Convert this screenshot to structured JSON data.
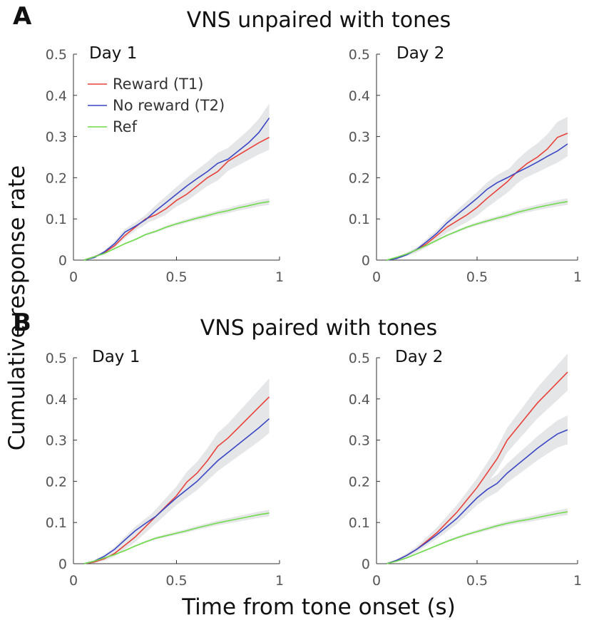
{
  "figure": {
    "ylabel": "Cumulative response rate",
    "xlabel": "Time from tone onset (s)",
    "rows": [
      {
        "letter": "A",
        "title": "VNS unpaired with tones"
      },
      {
        "letter": "B",
        "title": "VNS paired with tones"
      }
    ]
  },
  "colors": {
    "reward": "#e8413a",
    "noreward": "#3a46c4",
    "ref": "#6fdc4a",
    "band": "#e5e6e8"
  },
  "chart_data": [
    {
      "type": "line",
      "panel": "A",
      "title": "Day 1",
      "x": [
        0.05,
        0.1,
        0.15,
        0.2,
        0.25,
        0.3,
        0.35,
        0.4,
        0.45,
        0.5,
        0.55,
        0.6,
        0.65,
        0.7,
        0.75,
        0.8,
        0.85,
        0.9,
        0.95
      ],
      "xlim": [
        0,
        1
      ],
      "ylim": [
        0,
        0.5
      ],
      "xticks": [
        "0",
        "0.5",
        "1"
      ],
      "yticks": [
        "0",
        "0.1",
        "0.2",
        "0.3",
        "0.4",
        "0.5"
      ],
      "legend": [
        "Reward (T1)",
        "No reward (T2)",
        "Ref"
      ],
      "series": [
        {
          "name": "Reward (T1)",
          "color_key": "reward",
          "values": [
            0.0,
            0.008,
            0.018,
            0.035,
            0.06,
            0.08,
            0.1,
            0.11,
            0.125,
            0.145,
            0.16,
            0.18,
            0.2,
            0.215,
            0.24,
            0.255,
            0.27,
            0.285,
            0.298
          ],
          "band": 0.03
        },
        {
          "name": "No reward (T2)",
          "color_key": "noreward",
          "values": [
            0.0,
            0.006,
            0.02,
            0.04,
            0.068,
            0.082,
            0.098,
            0.12,
            0.14,
            0.16,
            0.18,
            0.198,
            0.215,
            0.235,
            0.245,
            0.265,
            0.285,
            0.31,
            0.345
          ],
          "band": 0.035
        },
        {
          "name": "Ref",
          "color_key": "ref",
          "values": [
            0.0,
            0.008,
            0.016,
            0.028,
            0.04,
            0.05,
            0.062,
            0.07,
            0.08,
            0.088,
            0.095,
            0.102,
            0.108,
            0.115,
            0.12,
            0.127,
            0.132,
            0.138,
            0.142
          ],
          "band": 0.008
        }
      ]
    },
    {
      "type": "line",
      "panel": "A",
      "title": "Day 2",
      "x": [
        0.05,
        0.1,
        0.15,
        0.2,
        0.25,
        0.3,
        0.35,
        0.4,
        0.45,
        0.5,
        0.55,
        0.6,
        0.65,
        0.7,
        0.75,
        0.8,
        0.85,
        0.9,
        0.95
      ],
      "xlim": [
        0,
        1
      ],
      "ylim": [
        0,
        0.5
      ],
      "xticks": [
        "0",
        "0.5",
        "1"
      ],
      "yticks": [
        "0",
        "0.1",
        "0.2",
        "0.3",
        "0.4",
        "0.5"
      ],
      "series": [
        {
          "name": "Reward (T1)",
          "color_key": "reward",
          "values": [
            0.0,
            0.005,
            0.014,
            0.025,
            0.04,
            0.06,
            0.08,
            0.095,
            0.11,
            0.128,
            0.15,
            0.17,
            0.19,
            0.215,
            0.235,
            0.25,
            0.27,
            0.298,
            0.308
          ],
          "band": 0.04
        },
        {
          "name": "No reward (T2)",
          "color_key": "noreward",
          "values": [
            0.0,
            0.004,
            0.013,
            0.026,
            0.045,
            0.065,
            0.09,
            0.11,
            0.13,
            0.15,
            0.172,
            0.188,
            0.2,
            0.213,
            0.225,
            0.238,
            0.252,
            0.265,
            0.282
          ],
          "band": 0.03
        },
        {
          "name": "Ref",
          "color_key": "ref",
          "values": [
            0.0,
            0.007,
            0.015,
            0.025,
            0.036,
            0.048,
            0.06,
            0.07,
            0.08,
            0.088,
            0.095,
            0.102,
            0.108,
            0.116,
            0.122,
            0.128,
            0.133,
            0.138,
            0.142
          ],
          "band": 0.008
        }
      ]
    },
    {
      "type": "line",
      "panel": "B",
      "title": "Day 1",
      "x": [
        0.05,
        0.1,
        0.15,
        0.2,
        0.25,
        0.3,
        0.35,
        0.4,
        0.45,
        0.5,
        0.55,
        0.6,
        0.65,
        0.7,
        0.75,
        0.8,
        0.85,
        0.9,
        0.95
      ],
      "xlim": [
        0,
        1
      ],
      "ylim": [
        0,
        0.5
      ],
      "xticks": [
        "0",
        "0.5",
        "1"
      ],
      "yticks": [
        "0",
        "0.1",
        "0.2",
        "0.3",
        "0.4",
        "0.5"
      ],
      "series": [
        {
          "name": "Reward (T1)",
          "color_key": "reward",
          "values": [
            0.0,
            0.004,
            0.012,
            0.025,
            0.045,
            0.065,
            0.09,
            0.115,
            0.14,
            0.165,
            0.198,
            0.22,
            0.25,
            0.285,
            0.305,
            0.33,
            0.355,
            0.38,
            0.405
          ],
          "band": 0.045
        },
        {
          "name": "No reward (T2)",
          "color_key": "noreward",
          "values": [
            0.0,
            0.006,
            0.018,
            0.035,
            0.058,
            0.08,
            0.098,
            0.115,
            0.138,
            0.16,
            0.18,
            0.2,
            0.225,
            0.25,
            0.27,
            0.29,
            0.31,
            0.33,
            0.352
          ],
          "band": 0.035
        },
        {
          "name": "Ref",
          "color_key": "ref",
          "values": [
            0.0,
            0.006,
            0.014,
            0.022,
            0.032,
            0.043,
            0.053,
            0.062,
            0.068,
            0.074,
            0.08,
            0.087,
            0.093,
            0.099,
            0.104,
            0.109,
            0.114,
            0.119,
            0.123
          ],
          "band": 0.008
        }
      ]
    },
    {
      "type": "line",
      "panel": "B",
      "title": "Day 2",
      "x": [
        0.05,
        0.1,
        0.15,
        0.2,
        0.25,
        0.3,
        0.35,
        0.4,
        0.45,
        0.5,
        0.55,
        0.6,
        0.65,
        0.7,
        0.75,
        0.8,
        0.85,
        0.9,
        0.95
      ],
      "xlim": [
        0,
        1
      ],
      "ylim": [
        0,
        0.5
      ],
      "xticks": [
        "0",
        "0.5",
        "1"
      ],
      "yticks": [
        "0",
        "0.1",
        "0.2",
        "0.3",
        "0.4",
        "0.5"
      ],
      "series": [
        {
          "name": "Reward (T1)",
          "color_key": "reward",
          "values": [
            0.0,
            0.008,
            0.02,
            0.035,
            0.055,
            0.075,
            0.1,
            0.125,
            0.155,
            0.185,
            0.22,
            0.255,
            0.3,
            0.33,
            0.36,
            0.39,
            0.415,
            0.44,
            0.465
          ],
          "band": 0.045
        },
        {
          "name": "No reward (T2)",
          "color_key": "noreward",
          "values": [
            0.0,
            0.008,
            0.02,
            0.035,
            0.052,
            0.07,
            0.09,
            0.11,
            0.135,
            0.16,
            0.18,
            0.195,
            0.22,
            0.24,
            0.26,
            0.28,
            0.298,
            0.315,
            0.325
          ],
          "band": 0.035
        },
        {
          "name": "Ref",
          "color_key": "ref",
          "values": [
            0.0,
            0.006,
            0.014,
            0.024,
            0.034,
            0.044,
            0.054,
            0.063,
            0.071,
            0.078,
            0.085,
            0.092,
            0.098,
            0.103,
            0.107,
            0.112,
            0.117,
            0.122,
            0.126
          ],
          "band": 0.008
        }
      ]
    }
  ]
}
